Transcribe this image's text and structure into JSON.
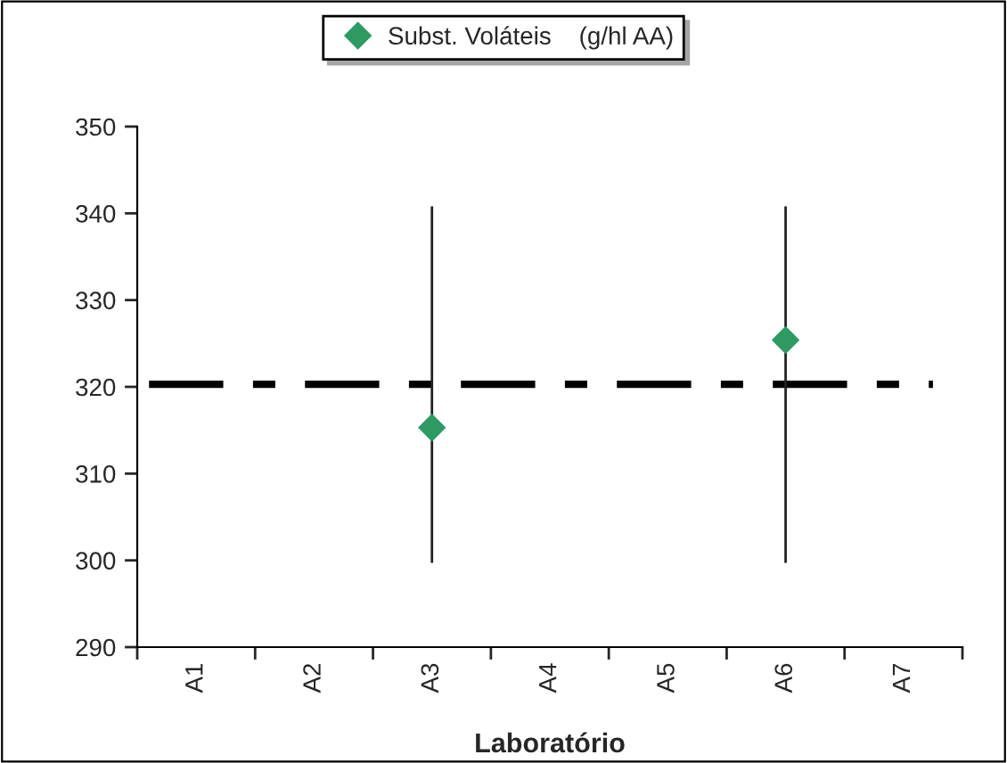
{
  "chart_data": {
    "type": "scatter",
    "xlabel": "Laboratório",
    "categories": [
      "A1",
      "A2",
      "A3",
      "A4",
      "A5",
      "A6",
      "A7"
    ],
    "series": [
      {
        "name": "Subst. Voláteis    (g/hl AA)",
        "color": "#2e9a63",
        "values": [
          null,
          null,
          315.3,
          null,
          null,
          325.4,
          null
        ],
        "errors": [
          null,
          null,
          [
            299.7,
            340.8
          ],
          null,
          null,
          [
            299.7,
            340.8
          ],
          null
        ]
      }
    ],
    "ylim": [
      290,
      350
    ],
    "yticks": [
      290,
      300,
      310,
      320,
      330,
      340,
      350
    ],
    "ref_lines": [
      {
        "axis": "y",
        "value": 320.3,
        "color": "#000000",
        "line_style": "dashdot"
      }
    ],
    "marker": "diamond",
    "legend": "top",
    "grid": false
  }
}
